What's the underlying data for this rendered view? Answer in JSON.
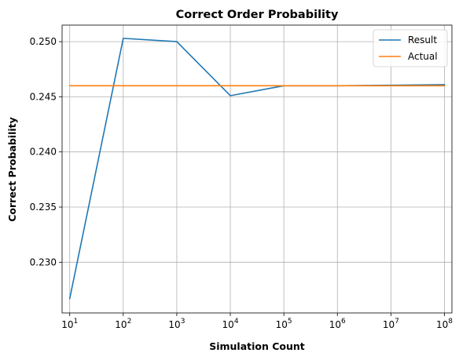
{
  "chart_data": {
    "type": "line",
    "title": "Correct Order Probability",
    "xlabel": "Simulation Count",
    "ylabel": "Correct Probability",
    "x_scale": "log",
    "x": [
      10,
      100,
      1000,
      10000,
      100000,
      1000000,
      10000000,
      100000000
    ],
    "x_tick_base": "10",
    "x_tick_exponents": [
      "1",
      "2",
      "3",
      "4",
      "5",
      "6",
      "7",
      "8"
    ],
    "xlim": [
      7.2,
      138000000
    ],
    "y_ticks": [
      0.23,
      0.235,
      0.24,
      0.245,
      0.25
    ],
    "y_tick_labels": [
      "0.230",
      "0.235",
      "0.240",
      "0.245",
      "0.250"
    ],
    "ylim": [
      0.2254,
      0.2515
    ],
    "grid": true,
    "legend_position": "top-right",
    "series": [
      {
        "name": "Result",
        "color": "#1f77b4",
        "values": [
          0.2267,
          0.2503,
          0.25,
          0.2451,
          0.246,
          0.246,
          0.24605,
          0.2461
        ]
      },
      {
        "name": "Actual",
        "color": "#ff7f0e",
        "values": [
          0.246,
          0.246,
          0.246,
          0.246,
          0.246,
          0.246,
          0.246,
          0.246
        ]
      }
    ]
  }
}
